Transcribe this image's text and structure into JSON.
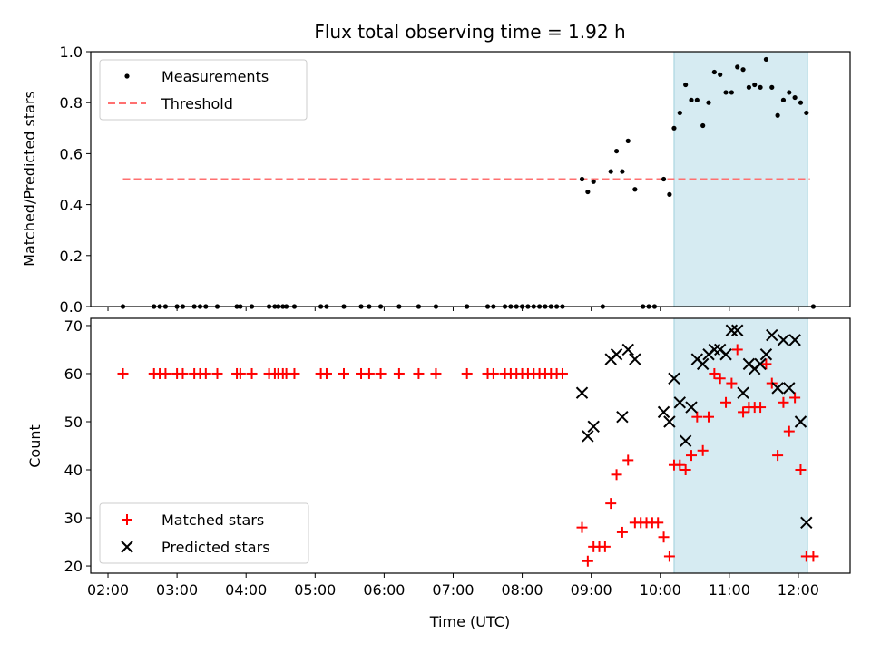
{
  "chart_data": [
    {
      "type": "scatter",
      "title": "Flux total observing time = 1.92 h",
      "xlabel": "",
      "ylabel": "Matched/Predicted stars",
      "ylim": [
        0,
        1.0
      ],
      "yticks": [
        "0.0",
        "0.2",
        "0.4",
        "0.6",
        "0.8",
        "1.0"
      ],
      "shaded_region": [
        "10:12",
        "12:08"
      ],
      "shade_color": "#add8e6",
      "legend_position": "upper-left",
      "series": [
        {
          "name": "Measurements",
          "marker": "dot",
          "color": "#000000",
          "points": [
            [
              "02:13",
              0
            ],
            [
              "02:40",
              0
            ],
            [
              "02:45",
              0
            ],
            [
              "02:50",
              0
            ],
            [
              "03:00",
              0
            ],
            [
              "03:05",
              0
            ],
            [
              "03:15",
              0
            ],
            [
              "03:20",
              0
            ],
            [
              "03:25",
              0
            ],
            [
              "03:35",
              0
            ],
            [
              "03:52",
              0
            ],
            [
              "03:55",
              0
            ],
            [
              "04:05",
              0
            ],
            [
              "04:20",
              0
            ],
            [
              "04:25",
              0
            ],
            [
              "04:28",
              0
            ],
            [
              "04:32",
              0
            ],
            [
              "04:35",
              0
            ],
            [
              "04:42",
              0
            ],
            [
              "05:05",
              0
            ],
            [
              "05:10",
              0
            ],
            [
              "05:25",
              0
            ],
            [
              "05:40",
              0
            ],
            [
              "05:47",
              0
            ],
            [
              "05:57",
              0
            ],
            [
              "06:13",
              0
            ],
            [
              "06:30",
              0
            ],
            [
              "06:45",
              0
            ],
            [
              "07:12",
              0
            ],
            [
              "07:30",
              0
            ],
            [
              "07:35",
              0
            ],
            [
              "07:45",
              0
            ],
            [
              "07:50",
              0
            ],
            [
              "07:55",
              0
            ],
            [
              "08:00",
              0
            ],
            [
              "08:05",
              0
            ],
            [
              "08:10",
              0
            ],
            [
              "08:15",
              0
            ],
            [
              "08:20",
              0
            ],
            [
              "08:25",
              0
            ],
            [
              "08:30",
              0
            ],
            [
              "08:35",
              0
            ],
            [
              "08:52",
              0.5
            ],
            [
              "08:57",
              0.45
            ],
            [
              "09:02",
              0.49
            ],
            [
              "09:10",
              0
            ],
            [
              "09:17",
              0.53
            ],
            [
              "09:22",
              0.61
            ],
            [
              "09:27",
              0.53
            ],
            [
              "09:32",
              0.65
            ],
            [
              "09:38",
              0.46
            ],
            [
              "09:45",
              0
            ],
            [
              "09:50",
              0
            ],
            [
              "09:55",
              0
            ],
            [
              "10:03",
              0.5
            ],
            [
              "10:08",
              0.44
            ],
            [
              "10:12",
              0.7
            ],
            [
              "10:17",
              0.76
            ],
            [
              "10:22",
              0.87
            ],
            [
              "10:27",
              0.81
            ],
            [
              "10:32",
              0.81
            ],
            [
              "10:37",
              0.71
            ],
            [
              "10:42",
              0.8
            ],
            [
              "10:47",
              0.92
            ],
            [
              "10:52",
              0.91
            ],
            [
              "10:57",
              0.84
            ],
            [
              "11:02",
              0.84
            ],
            [
              "11:07",
              0.94
            ],
            [
              "11:12",
              0.93
            ],
            [
              "11:17",
              0.86
            ],
            [
              "11:22",
              0.87
            ],
            [
              "11:27",
              0.86
            ],
            [
              "11:32",
              0.97
            ],
            [
              "11:37",
              0.86
            ],
            [
              "11:42",
              0.75
            ],
            [
              "11:47",
              0.81
            ],
            [
              "11:52",
              0.84
            ],
            [
              "11:57",
              0.82
            ],
            [
              "12:02",
              0.8
            ],
            [
              "12:07",
              0.76
            ],
            [
              "12:13",
              0
            ]
          ]
        },
        {
          "name": "Threshold",
          "marker": "dashed-line",
          "color": "#ff7070",
          "points": [
            [
              "02:13",
              0.5
            ],
            [
              "12:10",
              0.5
            ]
          ]
        }
      ]
    },
    {
      "type": "scatter",
      "title": "",
      "xlabel": "Time (UTC)",
      "ylabel": "Count",
      "ylim": [
        18.5,
        71.5
      ],
      "yticks": [
        "20",
        "30",
        "40",
        "50",
        "60",
        "70"
      ],
      "xticks": [
        "02:00",
        "03:00",
        "04:00",
        "05:00",
        "06:00",
        "07:00",
        "08:00",
        "09:00",
        "10:00",
        "11:00",
        "12:00"
      ],
      "shaded_region": [
        "10:12",
        "12:08"
      ],
      "shade_color": "#add8e6",
      "legend_position": "lower-left",
      "series": [
        {
          "name": "Matched stars",
          "marker": "plus",
          "color": "#ff0000",
          "points": [
            [
              "02:13",
              60
            ],
            [
              "02:40",
              60
            ],
            [
              "02:45",
              60
            ],
            [
              "02:50",
              60
            ],
            [
              "03:00",
              60
            ],
            [
              "03:05",
              60
            ],
            [
              "03:15",
              60
            ],
            [
              "03:20",
              60
            ],
            [
              "03:25",
              60
            ],
            [
              "03:35",
              60
            ],
            [
              "03:52",
              60
            ],
            [
              "03:55",
              60
            ],
            [
              "04:05",
              60
            ],
            [
              "04:20",
              60
            ],
            [
              "04:25",
              60
            ],
            [
              "04:28",
              60
            ],
            [
              "04:32",
              60
            ],
            [
              "04:35",
              60
            ],
            [
              "04:42",
              60
            ],
            [
              "05:05",
              60
            ],
            [
              "05:10",
              60
            ],
            [
              "05:25",
              60
            ],
            [
              "05:40",
              60
            ],
            [
              "05:47",
              60
            ],
            [
              "05:57",
              60
            ],
            [
              "06:13",
              60
            ],
            [
              "06:30",
              60
            ],
            [
              "06:45",
              60
            ],
            [
              "07:12",
              60
            ],
            [
              "07:30",
              60
            ],
            [
              "07:35",
              60
            ],
            [
              "07:45",
              60
            ],
            [
              "07:50",
              60
            ],
            [
              "07:55",
              60
            ],
            [
              "08:00",
              60
            ],
            [
              "08:05",
              60
            ],
            [
              "08:10",
              60
            ],
            [
              "08:15",
              60
            ],
            [
              "08:20",
              60
            ],
            [
              "08:25",
              60
            ],
            [
              "08:30",
              60
            ],
            [
              "08:35",
              60
            ],
            [
              "08:52",
              28
            ],
            [
              "08:57",
              21
            ],
            [
              "09:02",
              24
            ],
            [
              "09:07",
              24
            ],
            [
              "09:12",
              24
            ],
            [
              "09:17",
              33
            ],
            [
              "09:22",
              39
            ],
            [
              "09:27",
              27
            ],
            [
              "09:32",
              42
            ],
            [
              "09:38",
              29
            ],
            [
              "09:43",
              29
            ],
            [
              "09:48",
              29
            ],
            [
              "09:53",
              29
            ],
            [
              "09:58",
              29
            ],
            [
              "10:03",
              26
            ],
            [
              "10:08",
              22
            ],
            [
              "10:12",
              41
            ],
            [
              "10:17",
              41
            ],
            [
              "10:22",
              40
            ],
            [
              "10:27",
              43
            ],
            [
              "10:32",
              51
            ],
            [
              "10:37",
              44
            ],
            [
              "10:42",
              51
            ],
            [
              "10:47",
              60
            ],
            [
              "10:52",
              59
            ],
            [
              "10:57",
              54
            ],
            [
              "11:02",
              58
            ],
            [
              "11:07",
              65
            ],
            [
              "11:12",
              52
            ],
            [
              "11:17",
              53
            ],
            [
              "11:22",
              53
            ],
            [
              "11:27",
              53
            ],
            [
              "11:32",
              62
            ],
            [
              "11:37",
              58
            ],
            [
              "11:42",
              43
            ],
            [
              "11:47",
              54
            ],
            [
              "11:52",
              48
            ],
            [
              "11:57",
              55
            ],
            [
              "12:02",
              40
            ],
            [
              "12:07",
              22
            ],
            [
              "12:13",
              22
            ]
          ]
        },
        {
          "name": "Predicted stars",
          "marker": "x",
          "color": "#000000",
          "points": [
            [
              "08:52",
              56
            ],
            [
              "08:57",
              47
            ],
            [
              "09:02",
              49
            ],
            [
              "09:17",
              63
            ],
            [
              "09:22",
              64
            ],
            [
              "09:27",
              51
            ],
            [
              "09:32",
              65
            ],
            [
              "09:38",
              63
            ],
            [
              "10:03",
              52
            ],
            [
              "10:08",
              50
            ],
            [
              "10:12",
              59
            ],
            [
              "10:17",
              54
            ],
            [
              "10:22",
              46
            ],
            [
              "10:27",
              53
            ],
            [
              "10:32",
              63
            ],
            [
              "10:37",
              62
            ],
            [
              "10:42",
              64
            ],
            [
              "10:47",
              65
            ],
            [
              "10:52",
              65
            ],
            [
              "10:57",
              64
            ],
            [
              "11:02",
              69
            ],
            [
              "11:07",
              69
            ],
            [
              "11:12",
              56
            ],
            [
              "11:17",
              62
            ],
            [
              "11:22",
              61
            ],
            [
              "11:27",
              62
            ],
            [
              "11:32",
              64
            ],
            [
              "11:37",
              68
            ],
            [
              "11:42",
              57
            ],
            [
              "11:47",
              67
            ],
            [
              "11:52",
              57
            ],
            [
              "11:57",
              67
            ],
            [
              "12:02",
              50
            ],
            [
              "12:07",
              29
            ]
          ]
        }
      ]
    }
  ]
}
